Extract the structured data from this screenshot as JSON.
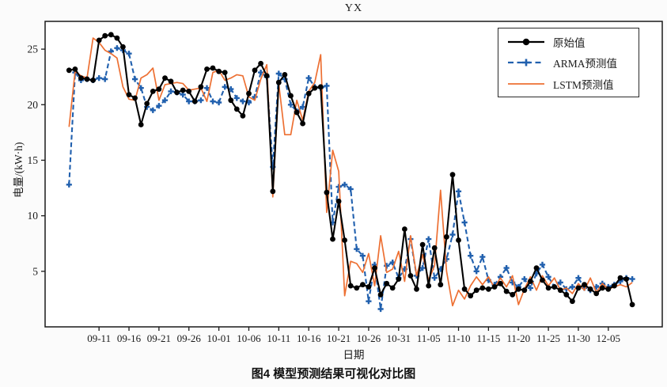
{
  "figure": {
    "title": "YX",
    "caption": "图4  模型预测结果可视化对比图",
    "x_axis_label": "日期",
    "y_axis_label": "电量/(kW·h)"
  },
  "chart_data": {
    "type": "line",
    "title": "YX",
    "xlabel": "日期",
    "ylabel": "电量/(kW·h)",
    "legend_position": "upper right",
    "grid": false,
    "ylim": [
      0,
      27.5
    ],
    "y_ticks": [
      5,
      10,
      15,
      20,
      25
    ],
    "x_tick_labels": [
      "09-11",
      "09-16",
      "09-21",
      "09-26",
      "10-01",
      "10-06",
      "10-11",
      "10-16",
      "10-21",
      "10-26",
      "10-31",
      "11-05",
      "11-10",
      "11-15",
      "11-20",
      "11-25",
      "11-30",
      "12-05"
    ],
    "dates": [
      "09-06",
      "09-07",
      "09-08",
      "09-09",
      "09-10",
      "09-11",
      "09-12",
      "09-13",
      "09-14",
      "09-15",
      "09-16",
      "09-17",
      "09-18",
      "09-19",
      "09-20",
      "09-21",
      "09-22",
      "09-23",
      "09-24",
      "09-25",
      "09-26",
      "09-27",
      "09-28",
      "09-29",
      "09-30",
      "10-01",
      "10-02",
      "10-03",
      "10-04",
      "10-05",
      "10-06",
      "10-07",
      "10-08",
      "10-09",
      "10-10",
      "10-11",
      "10-12",
      "10-13",
      "10-14",
      "10-15",
      "10-16",
      "10-17",
      "10-18",
      "10-19",
      "10-20",
      "10-21",
      "10-22",
      "10-23",
      "10-24",
      "10-25",
      "10-26",
      "10-27",
      "10-28",
      "10-29",
      "10-30",
      "10-31",
      "11-01",
      "11-02",
      "11-03",
      "11-04",
      "11-05",
      "11-06",
      "11-07",
      "11-08",
      "11-09",
      "11-10",
      "11-11",
      "11-12",
      "11-13",
      "11-14",
      "11-15",
      "11-16",
      "11-17",
      "11-18",
      "11-19",
      "11-20",
      "11-21",
      "11-22",
      "11-23",
      "11-24",
      "11-25",
      "11-26",
      "11-27",
      "11-28",
      "11-29",
      "11-30",
      "12-01",
      "12-02",
      "12-03",
      "12-04",
      "12-05",
      "12-06",
      "12-07",
      "12-08",
      "12-09"
    ],
    "series": [
      {
        "key": "original",
        "name": "原始值",
        "color": "#000000",
        "line": "solid",
        "marker": "circle",
        "values": [
          23.1,
          23.2,
          22.4,
          22.3,
          22.2,
          25.8,
          26.2,
          26.3,
          26.0,
          25.2,
          20.9,
          20.6,
          18.2,
          20.1,
          21.2,
          21.4,
          22.4,
          22.1,
          21.1,
          21.3,
          21.2,
          20.3,
          21.6,
          23.2,
          23.3,
          23.0,
          22.9,
          20.4,
          19.6,
          19.0,
          21.0,
          23.1,
          23.7,
          22.6,
          12.2,
          22.0,
          22.7,
          20.8,
          19.3,
          18.3,
          21.0,
          21.5,
          21.6,
          12.1,
          7.9,
          11.3,
          7.8,
          3.7,
          3.5,
          3.8,
          3.6,
          5.3,
          2.9,
          3.9,
          3.5,
          4.3,
          8.8,
          4.6,
          3.4,
          7.4,
          3.7,
          7.1,
          3.8,
          8.1,
          13.7,
          7.8,
          3.4,
          2.8,
          3.3,
          3.5,
          3.4,
          3.6,
          3.9,
          3.2,
          2.9,
          3.4,
          3.3,
          4.1,
          5.3,
          4.2,
          3.5,
          3.6,
          3.3,
          2.9,
          2.3,
          3.5,
          3.8,
          3.4,
          3.0,
          3.5,
          3.4,
          3.7,
          4.4,
          4.3,
          2.0
        ]
      },
      {
        "key": "arma",
        "name": "ARMA预测值",
        "color": "#2160ae",
        "line": "dashed",
        "marker": "plus",
        "values": [
          12.8,
          22.9,
          22.2,
          22.3,
          22.2,
          22.4,
          22.3,
          24.8,
          25.1,
          24.9,
          24.6,
          22.3,
          21.5,
          19.8,
          19.5,
          19.9,
          20.4,
          21.2,
          21.1,
          20.9,
          20.3,
          20.3,
          20.4,
          21.5,
          20.3,
          20.2,
          21.6,
          21.4,
          20.6,
          20.3,
          20.2,
          20.7,
          22.9,
          22.5,
          14.4,
          22.8,
          22.3,
          20.0,
          19.4,
          19.8,
          22.4,
          21.6,
          21.5,
          21.7,
          9.4,
          12.6,
          12.8,
          12.4,
          7.0,
          6.4,
          2.3,
          5.6,
          1.6,
          5.5,
          5.8,
          4.4,
          5.2,
          7.9,
          4.6,
          5.3,
          7.9,
          4.4,
          5.2,
          6.1,
          8.3,
          12.2,
          9.4,
          6.4,
          5.0,
          6.3,
          4.2,
          3.8,
          4.5,
          5.3,
          4.0,
          3.6,
          4.3,
          3.5,
          4.8,
          5.6,
          4.5,
          3.6,
          4.0,
          3.4,
          3.6,
          4.4,
          3.5,
          3.3,
          3.6,
          3.9,
          3.6,
          3.8,
          4.1,
          4.4,
          4.3
        ]
      },
      {
        "key": "lstm",
        "name": "LSTM预测值",
        "color": "#ed7033",
        "line": "solid",
        "marker": "none",
        "values": [
          18.0,
          23.0,
          22.6,
          22.4,
          26.0,
          25.6,
          24.9,
          24.6,
          24.2,
          21.6,
          20.5,
          20.4,
          22.4,
          22.7,
          23.3,
          20.4,
          21.8,
          21.9,
          22.0,
          21.9,
          21.3,
          21.4,
          21.5,
          20.3,
          22.9,
          23.1,
          22.2,
          22.4,
          22.7,
          22.6,
          20.7,
          20.4,
          22.3,
          23.6,
          11.7,
          21.9,
          17.3,
          17.3,
          20.4,
          18.6,
          21.2,
          22.0,
          24.5,
          10.3,
          15.9,
          14.0,
          2.8,
          5.9,
          5.7,
          4.9,
          6.6,
          3.7,
          8.2,
          4.9,
          5.2,
          6.8,
          4.1,
          8.2,
          4.6,
          6.5,
          4.2,
          5.5,
          12.3,
          5.0,
          1.9,
          3.3,
          2.5,
          3.7,
          4.5,
          3.8,
          4.5,
          3.5,
          4.4,
          3.6,
          4.6,
          2.0,
          3.4,
          4.5,
          3.3,
          4.6,
          3.7,
          4.4,
          3.3,
          3.5,
          3.0,
          3.9,
          3.3,
          4.4,
          3.1,
          3.9,
          3.4,
          3.6,
          3.8,
          3.6,
          4.0
        ]
      }
    ]
  }
}
